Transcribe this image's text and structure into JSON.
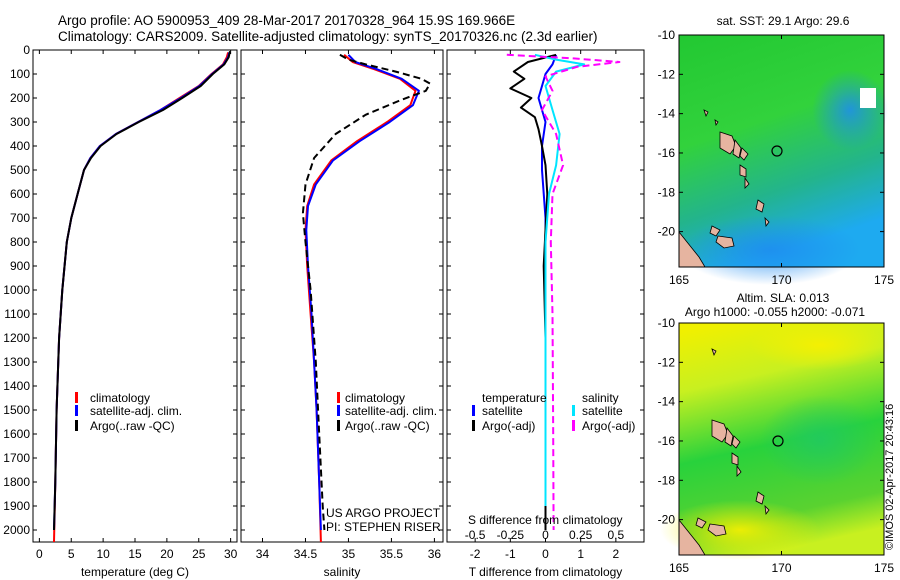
{
  "header": {
    "line1": "Argo profile: AO 5900953_409 28-Mar-2017 20170328_964 15.9S 169.966E",
    "line2": "Climatology: CARS2009. Satellite-adjusted climatology: synTS_20170326.nc (2.3d earlier)"
  },
  "credit": "©IMOS 02-Apr-2017 20:43:16",
  "project": {
    "line1": "US ARGO PROJECT",
    "line2": "PI: STEPHEN RISER"
  },
  "colors": {
    "climatology": "#ff0000",
    "satellite": "#0000ff",
    "argo": "#000000",
    "sal_satellite": "#00e5ff",
    "sal_argo": "#ff00ff"
  },
  "depth_ticks": [
    0,
    100,
    200,
    300,
    400,
    500,
    600,
    700,
    800,
    900,
    1000,
    1100,
    1200,
    1300,
    1400,
    1500,
    1600,
    1700,
    1800,
    1900,
    2000
  ],
  "chart_data": [
    {
      "type": "line",
      "xlabel": "temperature (deg C)",
      "ylim": [
        0,
        2050
      ],
      "xlim": [
        -1,
        31
      ],
      "xticks": [
        "0",
        "5",
        "10",
        "15",
        "20",
        "25",
        "30"
      ],
      "xtick_values": [
        0,
        5,
        10,
        15,
        20,
        25,
        30
      ],
      "legend": [
        "climatology",
        "satellite-adj. clim.",
        "Argo(..raw -QC)"
      ],
      "series": [
        {
          "name": "climatology",
          "color": "#ff0000",
          "dashed": false,
          "x": [
            29.6,
            29.4,
            28.8,
            27.0,
            25.0,
            22.0,
            19.0,
            15.5,
            12.0,
            9.5,
            8.0,
            7.0,
            6.0,
            5.0,
            4.3,
            3.6,
            3.1,
            2.7,
            2.5,
            2.3
          ],
          "y": [
            10,
            30,
            60,
            100,
            150,
            200,
            250,
            300,
            350,
            400,
            450,
            500,
            600,
            700,
            800,
            1000,
            1200,
            1500,
            1800,
            2050
          ]
        },
        {
          "name": "satellite-adj. clim.",
          "color": "#0000ff",
          "dashed": false,
          "x": [
            29.8,
            29.6,
            28.9,
            27.1,
            25.1,
            22.2,
            19.0,
            15.5,
            12.0,
            9.5,
            8.0,
            7.0,
            6.0,
            5.0,
            4.3,
            3.6,
            3.1,
            2.7,
            2.5,
            2.3
          ],
          "y": [
            10,
            30,
            60,
            100,
            150,
            200,
            250,
            300,
            350,
            400,
            450,
            500,
            600,
            700,
            800,
            1000,
            1200,
            1500,
            1800,
            2000
          ]
        },
        {
          "name": "Argo(..raw -QC)",
          "color": "#000000",
          "dashed": false,
          "x": [
            29.9,
            29.7,
            29.0,
            27.2,
            25.3,
            22.4,
            19.4,
            15.6,
            12.1,
            9.6,
            8.1,
            7.0,
            6.0,
            5.0,
            4.3,
            3.6,
            3.1,
            2.7,
            2.5,
            2.3
          ],
          "y": [
            5,
            30,
            60,
            100,
            150,
            200,
            250,
            300,
            350,
            400,
            450,
            500,
            600,
            700,
            800,
            1000,
            1200,
            1500,
            1800,
            2000
          ]
        }
      ]
    },
    {
      "type": "line",
      "xlabel": "salinity",
      "ylim": [
        0,
        2050
      ],
      "xlim": [
        33.75,
        36.1
      ],
      "xticks": [
        "34",
        "34.5",
        "35",
        "35.5",
        "36"
      ],
      "xtick_values": [
        34,
        34.5,
        35,
        35.5,
        36
      ],
      "legend": [
        "climatology",
        "satellite-adj. clim.",
        "Argo(..raw -QC)"
      ],
      "series": [
        {
          "name": "climatology",
          "color": "#ff0000",
          "dashed": false,
          "x": [
            34.95,
            35.05,
            35.3,
            35.6,
            35.78,
            35.72,
            35.45,
            35.1,
            34.8,
            34.6,
            34.52,
            34.5,
            34.52,
            34.56,
            34.6,
            34.63,
            34.66,
            34.68
          ],
          "y": [
            20,
            50,
            80,
            120,
            170,
            230,
            300,
            380,
            460,
            560,
            650,
            750,
            900,
            1100,
            1300,
            1500,
            1800,
            2050
          ]
        },
        {
          "name": "satellite-adj. clim.",
          "color": "#0000ff",
          "dashed": false,
          "x": [
            35.0,
            35.08,
            35.33,
            35.62,
            35.82,
            35.75,
            35.48,
            35.13,
            34.82,
            34.62,
            34.53,
            34.51,
            34.53,
            34.57,
            34.6,
            34.63,
            34.66,
            34.68
          ],
          "y": [
            20,
            50,
            80,
            120,
            170,
            230,
            300,
            380,
            460,
            560,
            650,
            750,
            900,
            1100,
            1300,
            1500,
            1800,
            2000
          ]
        },
        {
          "name": "Argo(..raw -QC)",
          "color": "#000000",
          "dashed": true,
          "x": [
            34.9,
            35.0,
            35.2,
            35.55,
            35.85,
            35.95,
            35.9,
            35.6,
            35.2,
            34.85,
            34.6,
            34.5,
            34.47,
            34.5,
            34.56,
            34.62,
            34.66,
            34.7,
            34.72
          ],
          "y": [
            20,
            40,
            60,
            90,
            120,
            140,
            170,
            210,
            270,
            350,
            450,
            560,
            680,
            800,
            1000,
            1300,
            1600,
            1900,
            2000
          ]
        }
      ]
    },
    {
      "type": "line",
      "xlabel": "T difference from climatology",
      "title": "S difference from climatology",
      "ylim": [
        0,
        2050
      ],
      "xlim": [
        -2.8,
        2.8
      ],
      "xticks": [
        "-2",
        "-1",
        "0",
        "1",
        "2"
      ],
      "xtick_values": [
        -2,
        -1,
        0,
        1,
        2
      ],
      "top_xticks": [
        "-0.5",
        "-0.25",
        "0",
        "0.25",
        "0.5"
      ],
      "top_xtick_values": [
        -0.5,
        -0.25,
        0,
        0.25,
        0.5
      ],
      "legend": [
        "temperature",
        "satellite",
        "Argo(-adj)",
        "salinity",
        "satellite",
        "Argo(-adj)"
      ],
      "series": [
        {
          "name": "temperature satellite",
          "color": "#0000ff",
          "dashed": false,
          "x": [
            0.3,
            0.2,
            0.0,
            -0.2,
            0.0,
            -0.1,
            -0.1,
            0.0,
            0.0,
            0.0,
            0.0
          ],
          "y": [
            20,
            60,
            100,
            200,
            300,
            400,
            500,
            700,
            1000,
            1500,
            2000
          ]
        },
        {
          "name": "temperature Argo(-adj)",
          "color": "#000000",
          "dashed": false,
          "x": [
            0.3,
            -0.5,
            -0.9,
            -0.6,
            -1.0,
            -0.4,
            -0.7,
            -0.3,
            -0.2,
            -0.1,
            0.0,
            0.05,
            0.0,
            -0.05,
            0.0,
            0.0,
            0.0
          ],
          "y": [
            20,
            50,
            90,
            120,
            160,
            200,
            240,
            280,
            330,
            400,
            480,
            600,
            750,
            900,
            1200,
            1600,
            2000
          ]
        },
        {
          "name": "salinity satellite",
          "color": "#00e5ff",
          "dashed": false,
          "x": [
            -0.3,
            0.3,
            1.1,
            0.3,
            0.0,
            0.2,
            0.4,
            0.3,
            0.1,
            0.0,
            0.0,
            0.0,
            0.0
          ],
          "y": [
            20,
            40,
            60,
            90,
            150,
            250,
            350,
            480,
            600,
            800,
            1100,
            1500,
            1900
          ]
        },
        {
          "name": "salinity Argo(-adj)",
          "color": "#ff00ff",
          "dashed": true,
          "x": [
            -1.1,
            0.8,
            2.1,
            0.9,
            0.0,
            0.2,
            -0.1,
            0.3,
            0.5,
            0.2,
            0.15,
            0.2,
            0.22,
            0.23
          ],
          "y": [
            20,
            35,
            50,
            70,
            110,
            170,
            250,
            350,
            480,
            600,
            800,
            1100,
            1600,
            2000
          ]
        }
      ]
    }
  ],
  "maps": [
    {
      "title": "sat. SST: 29.1  Argo: 29.6",
      "title2": "",
      "xticks": [
        "165",
        "170",
        "175"
      ],
      "yticks": [
        "-10",
        "-12",
        "-14",
        "-16",
        "-18",
        "-20"
      ],
      "lon_range": [
        165,
        175
      ],
      "lat_range": [
        -21.8,
        -10
      ],
      "float_lon": 169.966,
      "float_lat": -15.9
    },
    {
      "title": "Altim. SLA: 0.013",
      "title2": "Argo h1000: -0.055 h2000: -0.071",
      "xticks": [
        "165",
        "170",
        "175"
      ],
      "yticks": [
        "-10",
        "-12",
        "-14",
        "-16",
        "-18",
        "-20"
      ],
      "lon_range": [
        165,
        175
      ],
      "lat_range": [
        -21.8,
        -10
      ],
      "float_lon": 169.966,
      "float_lat": -15.9
    }
  ]
}
